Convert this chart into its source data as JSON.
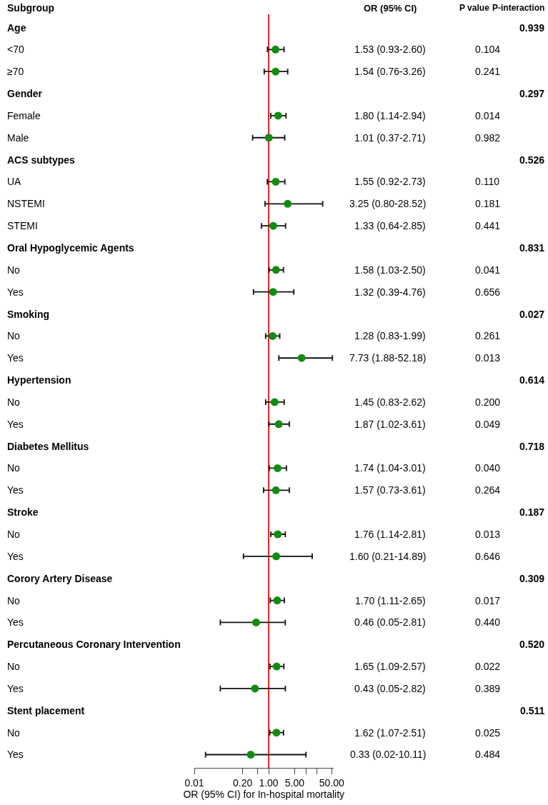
{
  "chart_data": {
    "type": "scatter",
    "orientation": "horizontal",
    "ylabel": "Subgroup",
    "xlabel": "OR (95% CI) for In-hospital mortality",
    "categories": [
      "Age",
      "<70",
      "≥70",
      "Gender",
      "Female",
      "Male",
      "ACS subtypes",
      "UA",
      "NSTEMI",
      "STEMI",
      "Oral Hypoglycemic Agents",
      "No",
      "Yes",
      "Smoking",
      "No",
      "Yes",
      "Hypertension",
      "No",
      "Yes",
      "Diabetes Mellitus",
      "No",
      "Yes",
      "Stroke",
      "No",
      "Yes",
      "Corory Artery Disease",
      "No",
      "Yes",
      "Percutaneous Coronary Intervention",
      "No",
      "Yes",
      "Stent placement",
      "No",
      "Yes"
    ],
    "color": "#118c11",
    "values": [
      null,
      1.53,
      1.54,
      null,
      1.8,
      1.01,
      null,
      1.55,
      3.25,
      1.33,
      null,
      1.58,
      1.32,
      null,
      1.28,
      7.73,
      null,
      1.45,
      1.87,
      null,
      1.74,
      1.57,
      null,
      1.76,
      1.6,
      null,
      1.7,
      0.46,
      null,
      1.65,
      0.43,
      null,
      1.62,
      0.33
    ],
    "errors": [
      null,
      [
        0.93,
        2.6
      ],
      [
        0.76,
        3.26
      ],
      null,
      [
        1.14,
        2.94
      ],
      [
        0.37,
        2.71
      ],
      null,
      [
        0.92,
        2.73
      ],
      [
        0.8,
        28.52
      ],
      [
        0.64,
        2.85
      ],
      null,
      [
        1.03,
        2.5
      ],
      [
        0.39,
        4.76
      ],
      null,
      [
        0.83,
        1.99
      ],
      [
        1.88,
        52.18
      ],
      null,
      [
        0.83,
        2.62
      ],
      [
        1.02,
        3.61
      ],
      null,
      [
        1.04,
        3.01
      ],
      [
        0.73,
        3.61
      ],
      null,
      [
        1.14,
        2.81
      ],
      [
        0.21,
        14.89
      ],
      null,
      [
        1.11,
        2.65
      ],
      [
        0.05,
        2.81
      ],
      null,
      [
        1.09,
        2.57
      ],
      [
        0.05,
        2.82
      ],
      null,
      [
        1.07,
        2.51
      ],
      [
        0.02,
        10.11
      ]
    ],
    "value_labels": [
      null,
      "1.53 (0.93-2.60)",
      "1.54 (0.76-3.26)",
      null,
      "1.80 (1.14-2.94)",
      "1.01 (0.37-2.71)",
      null,
      "1.55 (0.92-2.73)",
      "3.25 (0.80-28.52)",
      "1.33 (0.64-2.85)",
      null,
      "1.58 (1.03-2.50)",
      "1.32 (0.39-4.76)",
      null,
      "1.28 (0.83-1.99)",
      "7.73 (1.88-52.18)",
      null,
      "1.45 (0.83-2.62)",
      "1.87 (1.02-3.61)",
      null,
      "1.74 (1.04-3.01)",
      "1.57 (0.73-3.61)",
      null,
      "1.76 (1.14-2.81)",
      "1.60 (0.21-14.89)",
      null,
      "1.70 (1.11-2.65)",
      "0.46 (0.05-2.81)",
      null,
      "1.65 (1.09-2.57)",
      "0.43 (0.05-2.82)",
      null,
      "1.62 (1.07-2.51)",
      "0.33 (0.02-10.11)"
    ],
    "annotations": [
      "OR (95% CI)",
      "P value",
      "P-interaction",
      "0.939",
      "0.104",
      "0.241",
      "0.297",
      "0.014",
      "0.982",
      "0.526",
      "0.110",
      "0.181",
      "0.441",
      "0.831",
      "0.041",
      "0.656",
      "0.027",
      "0.261",
      "0.013",
      "0.614",
      "0.200",
      "0.049",
      "0.718",
      "0.040",
      "0.264",
      "0.187",
      "0.013",
      "0.646",
      "0.309",
      "0.017",
      "0.440",
      "0.520",
      "0.022",
      "0.389",
      "0.511",
      "0.025",
      "0.484"
    ],
    "log": "x",
    "xlim": [
      0.01,
      55
    ],
    "xticks": [
      0.01,
      {
        "value": 0.2,
        "label": "0.20"
      },
      {
        "value": 0.5,
        "label": null
      },
      {
        "value": 1,
        "label": "1.00"
      },
      {
        "value": 5,
        "label": "5.00"
      },
      {
        "value": 10,
        "label": null
      },
      {
        "value": 20,
        "label": null
      },
      {
        "value": 50,
        "label": "50.00"
      }
    ],
    "ref_lines": [
      {
        "axis": "x",
        "value": 1,
        "color": "#ee2222"
      }
    ],
    "marker": "circle",
    "grid": false,
    "tick_labels": "x"
  }
}
